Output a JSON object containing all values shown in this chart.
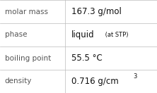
{
  "rows": [
    {
      "label": "molar mass",
      "value": "167.3 g/mol",
      "suffix": null,
      "superscript": null
    },
    {
      "label": "phase",
      "value": "liquid",
      "suffix": " (at STP)",
      "superscript": null
    },
    {
      "label": "boiling point",
      "value": "55.5 °C",
      "suffix": null,
      "superscript": null
    },
    {
      "label": "density",
      "value": "0.716 g/cm",
      "suffix": null,
      "superscript": "3"
    }
  ],
  "col_split": 0.415,
  "bg_color": "#ffffff",
  "line_color": "#bbbbbb",
  "label_fontsize": 7.5,
  "value_fontsize": 8.5,
  "suffix_fontsize": 6.0,
  "sup_fontsize": 6.0,
  "label_color": "#555555",
  "value_color": "#111111",
  "figwidth": 2.22,
  "figheight": 1.32,
  "dpi": 100
}
